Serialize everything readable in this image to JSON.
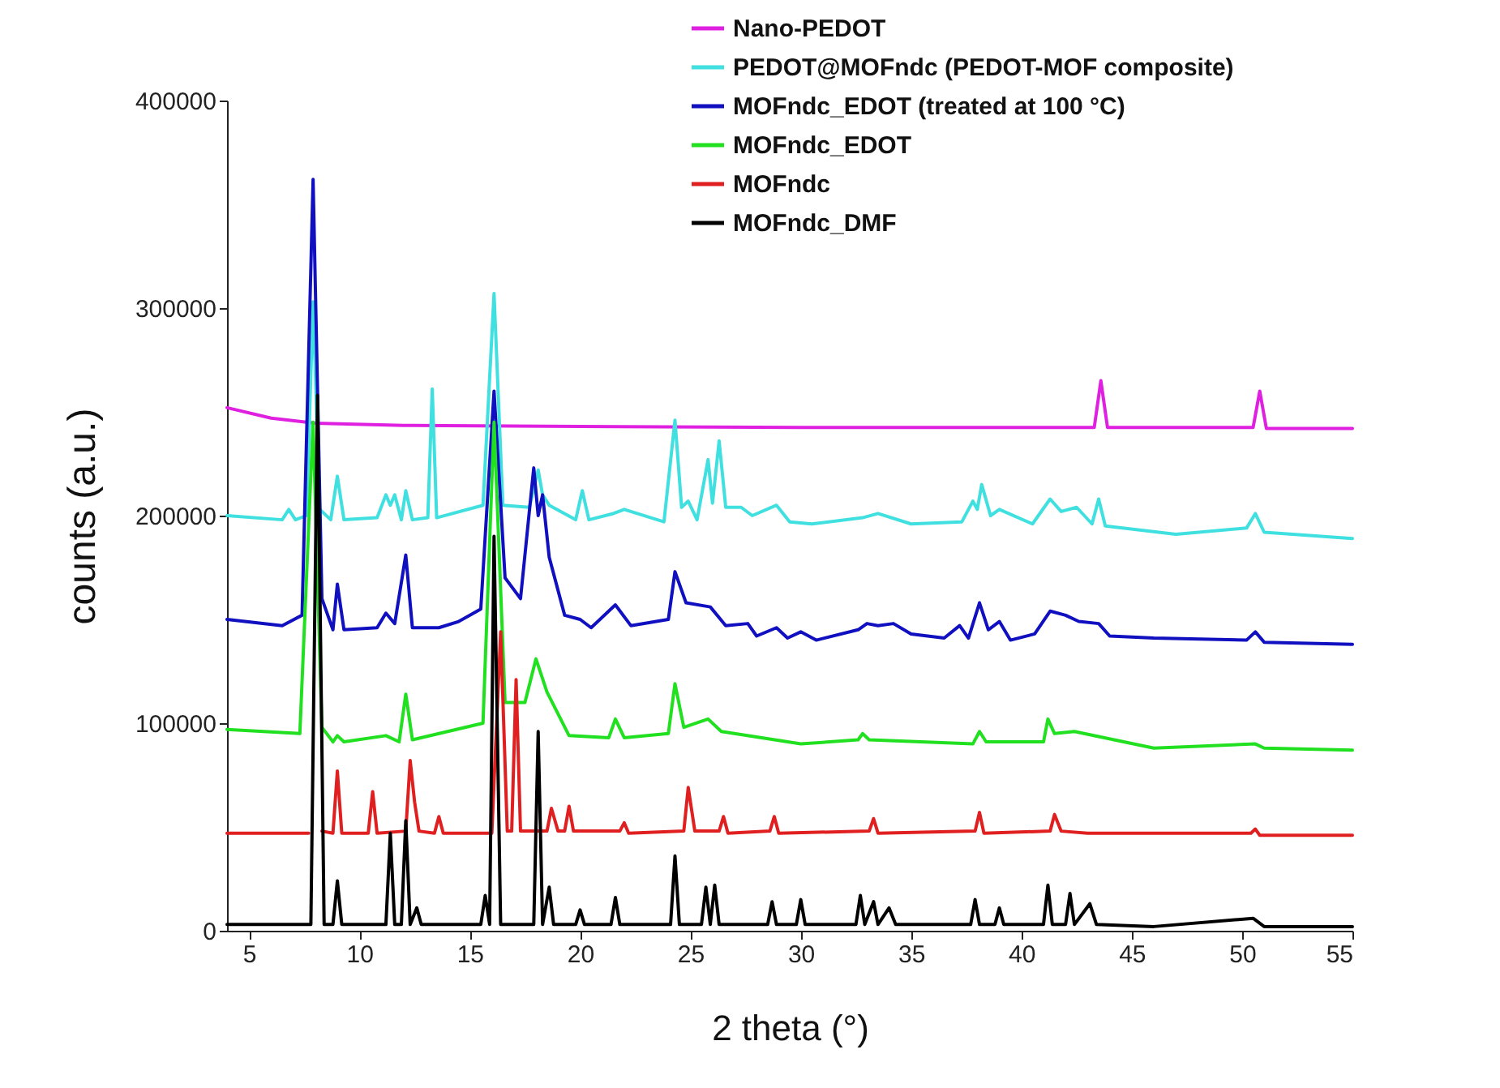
{
  "chart_data": {
    "type": "line",
    "xlabel": "2 theta (°)",
    "ylabel": "counts (a.u.)",
    "xlim": [
      4,
      55
    ],
    "xticks": [
      5,
      10,
      15,
      20,
      25,
      30,
      35,
      40,
      45,
      50,
      55
    ],
    "ylim": [
      0,
      400000
    ],
    "yticks": [
      0,
      100000,
      200000,
      300000,
      400000
    ],
    "grid": false,
    "legend": "top right",
    "marker": "none",
    "line_style": "solid",
    "series": [
      {
        "name": "Nano-PEDOT",
        "color": "#e020e0",
        "x": [
          4,
          6,
          8,
          12,
          20,
          30,
          43.3,
          43.6,
          43.9,
          50.5,
          50.8,
          51.1,
          55
        ],
        "values": [
          252000,
          247000,
          244500,
          243500,
          243000,
          242500,
          242500,
          265000,
          242500,
          242500,
          260000,
          242000,
          242000
        ]
      },
      {
        "name": "PEDOT@MOFndc (PEDOT-MOF composite)",
        "color": "#40e0e0",
        "x": [
          4,
          6.5,
          6.8,
          7.1,
          7.6,
          7.9,
          8.2,
          8.7,
          9,
          9.3,
          10.8,
          11.2,
          11.4,
          11.6,
          11.9,
          12.1,
          12.4,
          13.1,
          13.3,
          13.5,
          15.6,
          16.1,
          16.5,
          17.7,
          18.1,
          18.3,
          18.6,
          19.8,
          20.1,
          20.4,
          21.5,
          22,
          23.8,
          24.3,
          24.6,
          24.9,
          25.3,
          25.8,
          26,
          26.3,
          26.6,
          27.3,
          27.8,
          28.9,
          29.5,
          30.5,
          32.8,
          33.5,
          35,
          37.3,
          37.8,
          38,
          38.2,
          38.6,
          39,
          40.5,
          41.3,
          41.8,
          42.5,
          43.2,
          43.5,
          43.8,
          47,
          50.2,
          50.6,
          51,
          55
        ],
        "values": [
          200000,
          198000,
          203000,
          198000,
          200000,
          303000,
          203000,
          198000,
          219000,
          198000,
          199000,
          210000,
          205000,
          210000,
          198000,
          212000,
          198000,
          199000,
          261000,
          199000,
          205000,
          307000,
          205000,
          204000,
          222000,
          210000,
          205000,
          198000,
          212000,
          198000,
          201000,
          203000,
          197000,
          246000,
          204000,
          207000,
          198000,
          227000,
          206000,
          236000,
          204000,
          204000,
          200000,
          205000,
          197000,
          196000,
          199000,
          201000,
          196000,
          197000,
          207000,
          203000,
          215000,
          200000,
          203000,
          196000,
          208000,
          202000,
          204000,
          196000,
          208000,
          195000,
          191000,
          194000,
          201000,
          192000,
          189000
        ]
      },
      {
        "name": "MOFndc_EDOT (treated at 100 °C)",
        "color": "#1010c0",
        "x": [
          4,
          6.5,
          7.4,
          7.9,
          8.3,
          8.8,
          9,
          9.3,
          10.8,
          11.2,
          11.6,
          12.1,
          12.4,
          13.6,
          14.5,
          15.5,
          16.1,
          16.6,
          17.3,
          17.9,
          18.1,
          18.3,
          18.6,
          19.3,
          20,
          20.5,
          21.6,
          22.3,
          24,
          24.3,
          24.8,
          25.9,
          26.6,
          27.6,
          28,
          28.9,
          29.4,
          30,
          30.7,
          32.6,
          33,
          33.5,
          34.2,
          35,
          36.5,
          37.2,
          37.6,
          38.1,
          38.5,
          39,
          39.5,
          40.6,
          41.3,
          42,
          42.6,
          43.5,
          44,
          46,
          50.2,
          50.6,
          51,
          55
        ],
        "values": [
          150000,
          147000,
          152000,
          362000,
          160000,
          145000,
          167000,
          145000,
          146000,
          153000,
          148000,
          181000,
          146000,
          146000,
          149000,
          155000,
          260000,
          170000,
          160000,
          223000,
          200000,
          210000,
          180000,
          152000,
          150000,
          146000,
          157000,
          147000,
          150000,
          173000,
          158000,
          156000,
          147000,
          148000,
          142000,
          146000,
          141000,
          144000,
          140000,
          145000,
          148000,
          147000,
          148000,
          143000,
          141000,
          147000,
          141000,
          158000,
          145000,
          149000,
          140000,
          143000,
          154000,
          152000,
          149000,
          148000,
          142000,
          141000,
          140000,
          144000,
          139000,
          138000
        ]
      },
      {
        "name": "MOFndc_EDOT",
        "color": "#20e020",
        "x": [
          4,
          7.3,
          7.9,
          8.3,
          8.8,
          9,
          9.3,
          11.2,
          11.8,
          12.1,
          12.4,
          15.6,
          16.1,
          16.6,
          17.5,
          18,
          18.5,
          19.5,
          21.3,
          21.6,
          22,
          24,
          24.3,
          24.7,
          25.8,
          26.4,
          30,
          32.6,
          32.8,
          33.1,
          37.8,
          38.1,
          38.4,
          41,
          41.2,
          41.5,
          42.4,
          46,
          50.6,
          51,
          55
        ],
        "values": [
          97000,
          95000,
          245000,
          98000,
          91000,
          94000,
          91000,
          94000,
          91000,
          114000,
          92000,
          100000,
          245000,
          110000,
          110000,
          131000,
          115000,
          94000,
          93000,
          102000,
          93000,
          95000,
          119000,
          98000,
          102000,
          96000,
          90000,
          92000,
          95000,
          92000,
          90000,
          96000,
          91000,
          91000,
          102000,
          95000,
          96000,
          88000,
          90000,
          88000,
          87000
        ]
      },
      {
        "name": "MOFndc",
        "color": "#e02020",
        "x": [
          4,
          7.7,
          8,
          8.3,
          8.8,
          9,
          9.2,
          10.4,
          10.6,
          10.8,
          12.1,
          12.3,
          12.5,
          12.7,
          13.4,
          13.6,
          13.8,
          16,
          16.4,
          16.7,
          16.9,
          17.1,
          17.3,
          18.5,
          18.7,
          19,
          19.3,
          19.5,
          19.7,
          21.8,
          22,
          22.2,
          24.7,
          24.9,
          25.2,
          26.3,
          26.5,
          26.7,
          28.6,
          28.8,
          29,
          33.1,
          33.3,
          33.5,
          37.9,
          38.1,
          38.3,
          41.3,
          41.5,
          41.8,
          43,
          50.4,
          50.6,
          50.8,
          55
        ],
        "values": [
          47000,
          47000,
          null,
          48000,
          47000,
          77000,
          47000,
          47000,
          67000,
          47000,
          48000,
          82000,
          62000,
          48000,
          47000,
          55000,
          47000,
          47000,
          144000,
          48000,
          48000,
          121000,
          48000,
          48000,
          59000,
          48000,
          48000,
          60000,
          48000,
          48000,
          52000,
          47000,
          48000,
          69000,
          48000,
          48000,
          55000,
          47000,
          48000,
          55000,
          47000,
          48000,
          54000,
          47000,
          48000,
          57000,
          47000,
          48000,
          56000,
          48000,
          47000,
          47000,
          49000,
          46000,
          46000
        ]
      },
      {
        "name": "MOFndc_DMF",
        "color": "#000000",
        "x": [
          4,
          7.8,
          8.1,
          8.4,
          8.8,
          9,
          9.2,
          11.2,
          11.4,
          11.6,
          11.9,
          12.1,
          12.3,
          12.6,
          12.8,
          15.5,
          15.7,
          15.9,
          16.1,
          16.4,
          17.9,
          18.1,
          18.3,
          18.6,
          18.8,
          19.8,
          20,
          20.2,
          21.4,
          21.6,
          21.8,
          24.1,
          24.3,
          24.5,
          25.5,
          25.7,
          25.9,
          26.1,
          26.3,
          28.5,
          28.7,
          28.9,
          29.8,
          30,
          30.2,
          32.5,
          32.7,
          32.9,
          33.3,
          33.5,
          34,
          34.3,
          37.7,
          37.9,
          38.1,
          38.8,
          39,
          39.2,
          41,
          41.2,
          41.4,
          42,
          42.2,
          42.4,
          43.1,
          43.4,
          46,
          50.5,
          51,
          55
        ],
        "values": [
          3000,
          3000,
          258000,
          3000,
          3000,
          24000,
          3000,
          3000,
          47000,
          3000,
          3000,
          53000,
          3000,
          11000,
          3000,
          3000,
          17000,
          3000,
          190000,
          3000,
          3000,
          96000,
          3000,
          21000,
          3000,
          3000,
          10000,
          3000,
          3000,
          16000,
          3000,
          3000,
          36000,
          3000,
          3000,
          21000,
          3000,
          22000,
          3000,
          3000,
          14000,
          3000,
          3000,
          15000,
          3000,
          3000,
          17000,
          3000,
          14000,
          3000,
          11000,
          3000,
          3000,
          15000,
          3000,
          3000,
          11000,
          3000,
          3000,
          22000,
          3000,
          3000,
          18000,
          3000,
          13000,
          3000,
          2000,
          6000,
          2000,
          2000
        ]
      }
    ]
  }
}
